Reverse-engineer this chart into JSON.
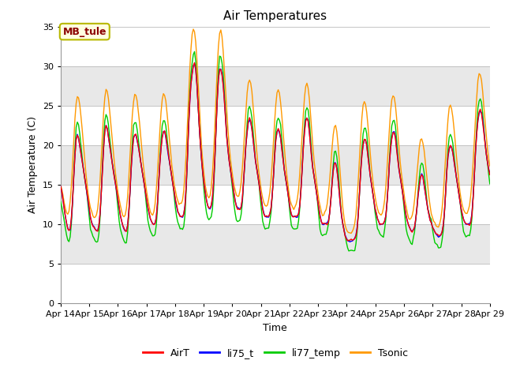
{
  "title": "Air Temperatures",
  "xlabel": "Time",
  "ylabel": "Air Temperature (C)",
  "ylim": [
    0,
    35
  ],
  "yticks": [
    0,
    5,
    10,
    15,
    20,
    25,
    30,
    35
  ],
  "annotation_text": "MB_tule",
  "annotation_color": "#8B0000",
  "annotation_bg": "#FFFFE0",
  "annotation_border": "#B8B800",
  "x_labels": [
    "Apr 14",
    "Apr 15",
    "Apr 16",
    "Apr 17",
    "Apr 18",
    "Apr 19",
    "Apr 20",
    "Apr 21",
    "Apr 22",
    "Apr 23",
    "Apr 24",
    "Apr 25",
    "Apr 26",
    "Apr 27",
    "Apr 28",
    "Apr 29"
  ],
  "colors": {
    "AirT": "#FF0000",
    "li75_t": "#0000FF",
    "li77_temp": "#00CC00",
    "Tsonic": "#FF9900"
  },
  "line_width": 1.0,
  "plot_bg": "#E8E8E8",
  "band_white": "#FFFFFF",
  "band_gray": "#DCDCDC",
  "title_fontsize": 11,
  "label_fontsize": 9,
  "tick_fontsize": 8,
  "legend_fontsize": 9
}
